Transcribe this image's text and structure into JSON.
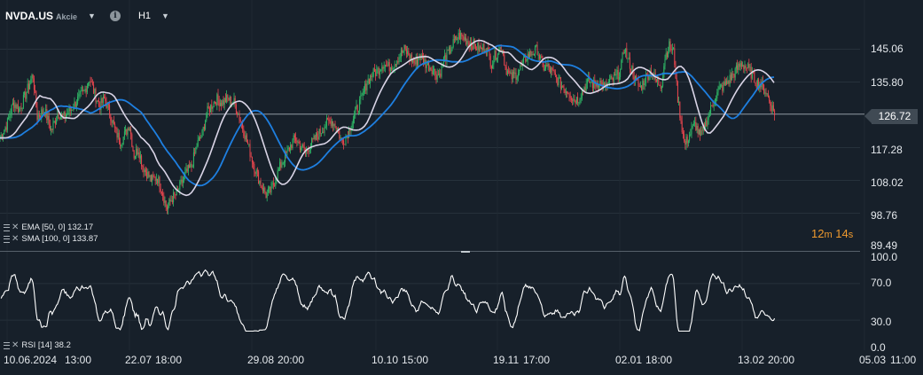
{
  "toolbar": {
    "symbol": "NVDA.US",
    "symbol_type": "Akcie",
    "info": "i",
    "timeframe": "H1"
  },
  "indicators": {
    "ema": {
      "name": "EMA [50, 0]",
      "value": "132.17",
      "color": "#d9d4e6"
    },
    "sma": {
      "name": "SMA [100, 0]",
      "value": "133.87",
      "color": "#1e7fe0"
    },
    "rsi": {
      "name": "RSI [14]",
      "value": "38.2",
      "color": "#ffffff"
    }
  },
  "current_price": "126.72",
  "countdown": {
    "min": "12",
    "min_unit": "m",
    "sec": "14",
    "sec_unit": "s"
  },
  "price_axis": [
    "145.06",
    "135.80",
    "126.72",
    "117.28",
    "108.02",
    "98.76",
    "89.49"
  ],
  "rsi_axis": [
    "100.0",
    "70.0",
    "30.0",
    "0.0"
  ],
  "time_axis": [
    "10.06.2024",
    "13:00",
    "22.07",
    "18:00",
    "29.08",
    "20:00",
    "10.10",
    "15:00",
    "19.11",
    "17:00",
    "02.01",
    "18:00",
    "13.02",
    "20:00",
    "05.03",
    "11:00"
  ],
  "colors": {
    "background": "#17202a",
    "up": "#2fb866",
    "down": "#e8464e",
    "accent": "#f09a2e",
    "grid": "#26313b"
  },
  "chart_data": {
    "type": "candlestick",
    "symbol": "NVDA.US",
    "timeframe": "H1",
    "y_range": [
      89.49,
      150.0
    ],
    "current_price": 126.72,
    "price_path": [
      [
        0,
        120
      ],
      [
        8,
        124
      ],
      [
        15,
        130
      ],
      [
        22,
        128
      ],
      [
        30,
        133
      ],
      [
        37,
        138
      ],
      [
        42,
        126
      ],
      [
        50,
        128
      ],
      [
        58,
        122
      ],
      [
        65,
        127
      ],
      [
        72,
        126
      ],
      [
        80,
        128
      ],
      [
        88,
        131
      ],
      [
        95,
        133
      ],
      [
        101,
        137
      ],
      [
        106,
        133
      ],
      [
        112,
        129
      ],
      [
        118,
        131
      ],
      [
        124,
        127
      ],
      [
        130,
        122
      ],
      [
        136,
        119
      ],
      [
        141,
        121
      ],
      [
        146,
        124
      ],
      [
        151,
        115
      ],
      [
        156,
        117
      ],
      [
        161,
        112
      ],
      [
        166,
        110
      ],
      [
        171,
        108
      ],
      [
        177,
        109
      ],
      [
        183,
        105
      ],
      [
        188,
        100
      ],
      [
        194,
        103
      ],
      [
        199,
        104
      ],
      [
        204,
        107
      ],
      [
        210,
        110
      ],
      [
        216,
        112
      ],
      [
        222,
        118
      ],
      [
        228,
        121
      ],
      [
        233,
        127
      ],
      [
        238,
        129
      ],
      [
        244,
        131
      ],
      [
        250,
        130
      ],
      [
        257,
        131
      ],
      [
        264,
        130
      ],
      [
        270,
        126
      ],
      [
        276,
        121
      ],
      [
        282,
        116
      ],
      [
        288,
        111
      ],
      [
        294,
        107
      ],
      [
        300,
        104
      ],
      [
        305,
        105
      ],
      [
        310,
        108
      ],
      [
        316,
        112
      ],
      [
        322,
        115
      ],
      [
        328,
        118
      ],
      [
        333,
        120
      ],
      [
        338,
        118
      ],
      [
        344,
        116
      ],
      [
        350,
        118
      ],
      [
        356,
        120
      ],
      [
        362,
        122
      ],
      [
        368,
        124
      ],
      [
        374,
        125
      ],
      [
        380,
        123
      ],
      [
        385,
        119
      ],
      [
        390,
        120
      ],
      [
        396,
        124
      ],
      [
        402,
        128
      ],
      [
        408,
        131
      ],
      [
        414,
        136
      ],
      [
        420,
        138
      ],
      [
        426,
        139
      ],
      [
        432,
        141
      ],
      [
        438,
        140
      ],
      [
        444,
        141
      ],
      [
        450,
        143
      ],
      [
        456,
        145
      ],
      [
        462,
        143
      ],
      [
        468,
        141
      ],
      [
        474,
        143
      ],
      [
        480,
        141
      ],
      [
        486,
        140
      ],
      [
        492,
        138
      ],
      [
        496,
        138
      ],
      [
        500,
        142
      ],
      [
        506,
        144
      ],
      [
        512,
        147
      ],
      [
        518,
        149
      ],
      [
        524,
        148
      ],
      [
        530,
        147
      ],
      [
        536,
        146
      ],
      [
        542,
        145
      ],
      [
        548,
        146
      ],
      [
        554,
        141
      ],
      [
        560,
        144
      ],
      [
        566,
        146
      ],
      [
        570,
        140
      ],
      [
        576,
        137
      ],
      [
        582,
        138
      ],
      [
        588,
        140
      ],
      [
        594,
        143
      ],
      [
        600,
        144
      ],
      [
        606,
        145
      ],
      [
        612,
        140
      ],
      [
        618,
        140
      ],
      [
        624,
        138
      ],
      [
        630,
        136
      ],
      [
        636,
        134
      ],
      [
        642,
        133
      ],
      [
        646,
        131
      ],
      [
        652,
        131
      ],
      [
        658,
        134
      ],
      [
        664,
        136
      ],
      [
        670,
        135
      ],
      [
        676,
        136
      ],
      [
        682,
        134
      ],
      [
        688,
        136
      ],
      [
        694,
        137
      ],
      [
        700,
        139
      ],
      [
        704,
        146
      ],
      [
        708,
        142
      ],
      [
        712,
        140
      ],
      [
        717,
        136
      ],
      [
        722,
        134
      ],
      [
        728,
        137
      ],
      [
        734,
        139
      ],
      [
        740,
        136
      ],
      [
        746,
        135
      ],
      [
        750,
        143
      ],
      [
        755,
        146
      ],
      [
        760,
        144
      ],
      [
        764,
        132
      ],
      [
        768,
        125
      ],
      [
        772,
        118
      ],
      [
        778,
        121
      ],
      [
        784,
        124
      ],
      [
        790,
        120
      ],
      [
        794,
        123
      ],
      [
        800,
        127
      ],
      [
        806,
        131
      ],
      [
        812,
        134
      ],
      [
        818,
        135
      ],
      [
        824,
        137
      ],
      [
        830,
        139
      ],
      [
        836,
        141
      ],
      [
        842,
        140
      ],
      [
        848,
        138
      ],
      [
        852,
        136
      ],
      [
        858,
        135
      ],
      [
        864,
        133
      ],
      [
        870,
        129
      ],
      [
        874,
        127
      ]
    ],
    "ema_50": 132.17,
    "sma_100": 133.87,
    "rsi_14": 38.2,
    "rsi_levels": [
      30,
      70
    ],
    "rsi_range": [
      0,
      100
    ]
  }
}
